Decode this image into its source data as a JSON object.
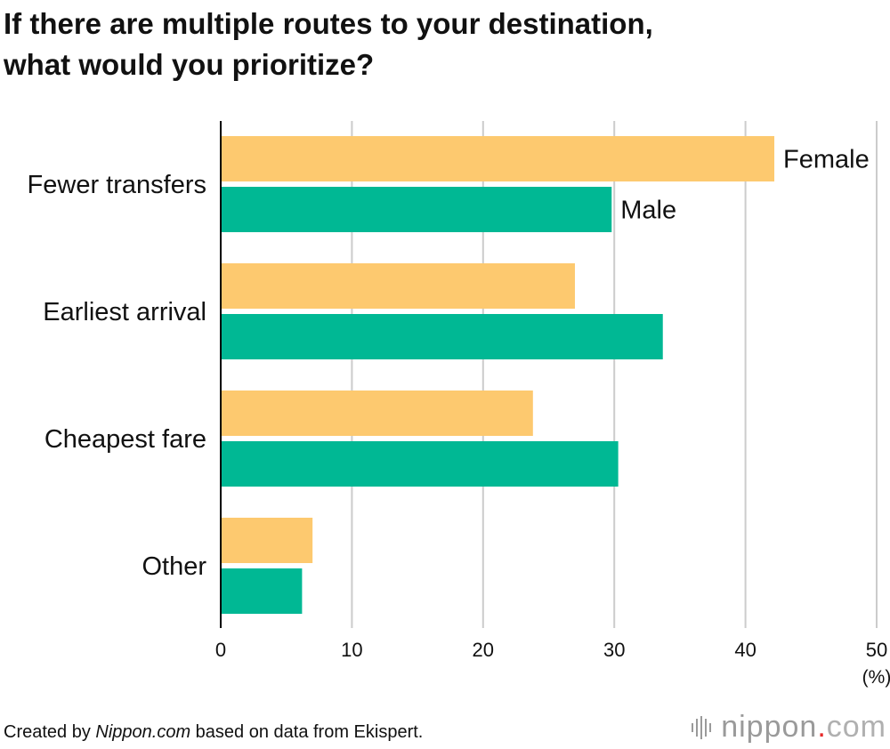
{
  "title_line1": "If there are multiple routes to your destination,",
  "title_line2": "what would you prioritize?",
  "footer": {
    "prefix": "Created by ",
    "site": "Nippon.com",
    "suffix": " based on data from Ekispert."
  },
  "logo": {
    "name": "nippon",
    "dot": ".",
    "tld": "com"
  },
  "colors": {
    "female": "#fdc96f",
    "male": "#00b894",
    "grid": "#cccccc",
    "axis": "#000000"
  },
  "chart_data": {
    "type": "bar",
    "orientation": "horizontal",
    "categories": [
      "Fewer transfers",
      "Earliest arrival",
      "Cheapest fare",
      "Other"
    ],
    "series": [
      {
        "name": "Female",
        "values": [
          42.2,
          27.0,
          23.8,
          7.0
        ]
      },
      {
        "name": "Male",
        "values": [
          29.8,
          33.7,
          30.3,
          6.2
        ]
      }
    ],
    "xlim": [
      0,
      50
    ],
    "xticks": [
      "0",
      "10",
      "20",
      "30",
      "40",
      "50"
    ],
    "xunit": "(%)",
    "grid": true,
    "legend": "inline labels on first category"
  }
}
